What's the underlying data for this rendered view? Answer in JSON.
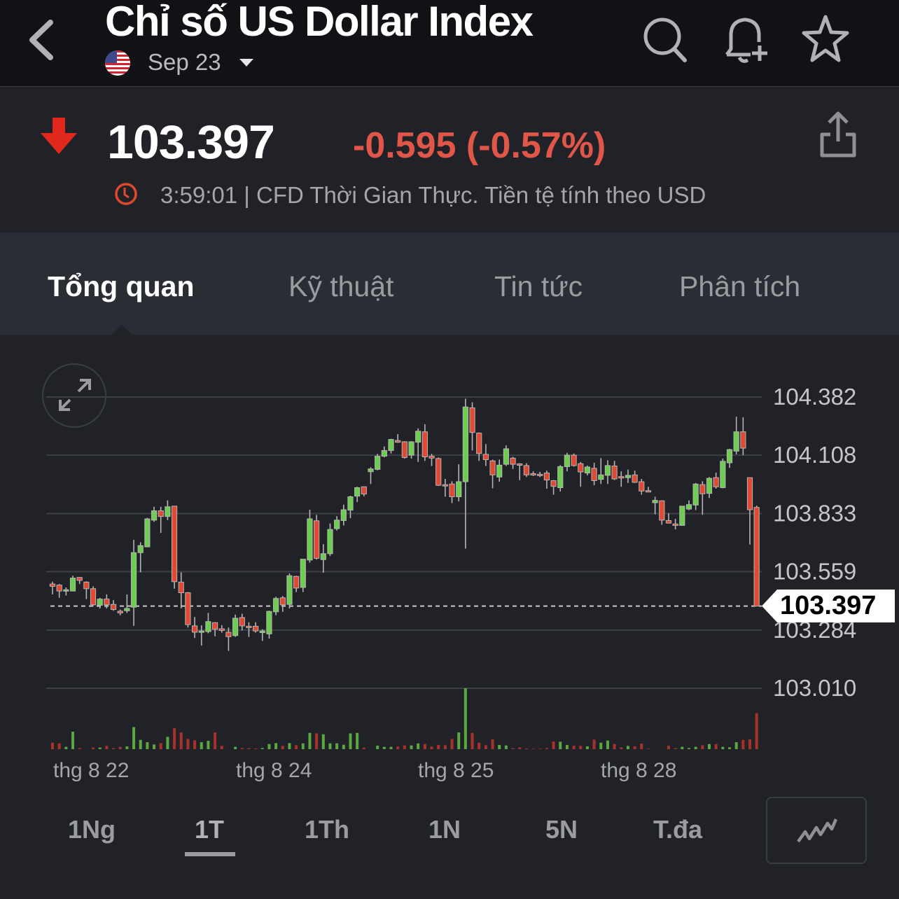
{
  "header": {
    "title": "Chỉ số US Dollar Index",
    "contract": "Sep 23",
    "icons": [
      "back-chevron-icon",
      "us-flag-icon",
      "search-icon",
      "bell-plus-icon",
      "star-icon"
    ]
  },
  "quote": {
    "price": "103.397",
    "change": "-0.595 (-0.57%)",
    "direction": "down",
    "meta": "3:59:01 | CFD Thời Gian Thực. Tiền tệ tính theo USD",
    "colors": {
      "down": "#e0574a",
      "arrow": "#e0281c"
    }
  },
  "tabs": [
    {
      "label": "Tổng quan",
      "active": true
    },
    {
      "label": "Kỹ thuật",
      "active": false
    },
    {
      "label": "Tin tức",
      "active": false
    },
    {
      "label": "Phân tích",
      "active": false
    }
  ],
  "periods": [
    {
      "label": "1Ng",
      "active": false
    },
    {
      "label": "1T",
      "active": true
    },
    {
      "label": "1Th",
      "active": false
    },
    {
      "label": "1N",
      "active": false
    },
    {
      "label": "5N",
      "active": false
    },
    {
      "label": "T.đa",
      "active": false
    }
  ],
  "chart_data": {
    "type": "candlestick",
    "y_ticks": [
      "104.382",
      "104.108",
      "103.833",
      "103.559",
      "103.284",
      "103.010"
    ],
    "ylim": [
      103.01,
      104.382
    ],
    "x_ticks": [
      "thg 8 22",
      "thg 8 24",
      "thg 8 25",
      "thg 8 28"
    ],
    "last_price": "103.397",
    "grid": true,
    "colors": {
      "up": "#6ccd4e",
      "down": "#e04a34",
      "volume_up": "#5aa83f",
      "volume_down": "#a8322a"
    },
    "ohlc": [
      [
        103.501,
        103.512,
        103.452,
        103.49
      ],
      [
        103.496,
        103.501,
        103.436,
        103.468
      ],
      [
        103.468,
        103.485,
        103.447,
        103.474
      ],
      [
        103.468,
        103.54,
        103.468,
        103.529
      ],
      [
        103.532,
        103.534,
        103.501,
        103.518
      ],
      [
        103.51,
        103.514,
        103.43,
        103.479
      ],
      [
        103.479,
        103.49,
        103.397,
        103.403
      ],
      [
        103.401,
        103.436,
        103.386,
        103.43
      ],
      [
        103.43,
        103.452,
        103.386,
        103.403
      ],
      [
        103.405,
        103.425,
        103.375,
        103.381
      ],
      [
        103.373,
        103.381,
        103.354,
        103.365
      ],
      [
        103.375,
        103.452,
        103.365,
        103.386
      ],
      [
        103.392,
        103.709,
        103.304,
        103.649
      ],
      [
        103.649,
        103.698,
        103.556,
        103.682
      ],
      [
        103.676,
        103.813,
        103.676,
        103.808
      ],
      [
        103.802,
        103.865,
        103.794,
        103.846
      ],
      [
        103.846,
        103.865,
        103.742,
        103.819
      ],
      [
        103.819,
        103.895,
        103.802,
        103.865
      ],
      [
        103.868,
        103.868,
        103.479,
        103.512
      ],
      [
        103.51,
        103.556,
        103.386,
        103.46
      ],
      [
        103.46,
        103.463,
        103.296,
        103.31
      ],
      [
        103.304,
        103.346,
        103.247,
        103.274
      ],
      [
        103.274,
        103.307,
        103.211,
        103.28
      ],
      [
        103.277,
        103.365,
        103.269,
        103.324
      ],
      [
        103.319,
        103.321,
        103.255,
        103.288
      ],
      [
        103.29,
        103.307,
        103.272,
        103.282
      ],
      [
        103.274,
        103.296,
        103.186,
        103.253
      ],
      [
        103.258,
        103.357,
        103.252,
        103.34
      ],
      [
        103.343,
        103.361,
        103.282,
        103.304
      ],
      [
        103.302,
        103.321,
        103.252,
        103.296
      ],
      [
        103.302,
        103.321,
        103.272,
        103.28
      ],
      [
        103.272,
        103.288,
        103.233,
        103.28
      ],
      [
        103.266,
        103.375,
        103.244,
        103.372
      ],
      [
        103.37,
        103.441,
        103.354,
        103.433
      ],
      [
        103.436,
        103.444,
        103.37,
        103.403
      ],
      [
        103.405,
        103.551,
        103.386,
        103.54
      ],
      [
        103.537,
        103.54,
        103.463,
        103.482
      ],
      [
        103.485,
        103.618,
        103.463,
        103.618
      ],
      [
        103.614,
        103.851,
        103.602,
        103.808
      ],
      [
        103.799,
        103.827,
        103.616,
        103.622
      ],
      [
        103.616,
        103.689,
        103.554,
        103.644
      ],
      [
        103.644,
        103.786,
        103.633,
        103.758
      ],
      [
        103.762,
        103.821,
        103.753,
        103.802
      ],
      [
        103.8,
        103.875,
        103.777,
        103.851
      ],
      [
        103.849,
        103.917,
        103.811,
        103.912
      ],
      [
        103.915,
        103.959,
        103.887,
        103.955
      ],
      [
        103.959,
        103.961,
        103.914,
        103.925
      ],
      [
        104.03,
        104.051,
        103.972,
        104.043
      ],
      [
        104.041,
        104.114,
        104.037,
        104.103
      ],
      [
        104.103,
        104.149,
        104.098,
        104.13
      ],
      [
        104.13,
        104.185,
        104.116,
        104.182
      ],
      [
        104.177,
        104.207,
        104.166,
        104.169
      ],
      [
        104.171,
        104.174,
        104.092,
        104.097
      ],
      [
        104.108,
        104.174,
        104.092,
        104.171
      ],
      [
        104.169,
        104.234,
        104.076,
        104.221
      ],
      [
        104.218,
        104.254,
        104.081,
        104.1
      ],
      [
        104.103,
        104.114,
        104.057,
        104.094
      ],
      [
        104.092,
        104.097,
        103.963,
        103.966
      ],
      [
        103.969,
        103.996,
        103.912,
        103.964
      ],
      [
        103.972,
        103.985,
        103.882,
        103.912
      ],
      [
        103.912,
        104.065,
        103.89,
        103.983
      ],
      [
        103.983,
        104.374,
        103.668,
        104.335
      ],
      [
        104.331,
        104.357,
        104.13,
        104.215
      ],
      [
        104.212,
        104.215,
        104.081,
        104.116
      ],
      [
        104.112,
        104.16,
        104.057,
        104.087
      ],
      [
        104.081,
        104.087,
        103.952,
        104.015
      ],
      [
        104.005,
        104.087,
        103.983,
        104.061
      ],
      [
        104.065,
        104.154,
        104.057,
        104.138
      ],
      [
        104.094,
        104.1,
        104.043,
        104.065
      ],
      [
        104.067,
        104.07,
        103.99,
        104.061
      ],
      [
        104.059,
        104.07,
        104.005,
        104.015
      ],
      [
        104.021,
        104.032,
        104.01,
        104.015
      ],
      [
        104.018,
        104.029,
        104.005,
        104.013
      ],
      [
        104.024,
        104.035,
        103.95,
        103.991
      ],
      [
        103.988,
        103.991,
        103.922,
        103.961
      ],
      [
        103.955,
        104.061,
        103.937,
        104.054
      ],
      [
        104.054,
        104.119,
        104.032,
        104.108
      ],
      [
        104.108,
        104.116,
        104.054,
        104.059
      ],
      [
        104.068,
        104.076,
        103.959,
        104.029
      ],
      [
        104.024,
        104.059,
        104.013,
        104.052
      ],
      [
        104.046,
        104.072,
        103.966,
        103.988
      ],
      [
        103.994,
        104.094,
        103.972,
        104.015
      ],
      [
        104.013,
        104.084,
        103.972,
        104.059
      ],
      [
        104.057,
        104.081,
        103.991,
        103.996
      ],
      [
        104.007,
        104.032,
        103.959,
        104.001
      ],
      [
        104.002,
        104.04,
        103.977,
        104.013
      ],
      [
        104.015,
        104.035,
        103.977,
        103.98
      ],
      [
        103.983,
        103.996,
        103.922,
        103.939
      ],
      [
        103.941,
        103.959,
        103.933,
        103.936
      ],
      [
        103.884,
        103.912,
        103.829,
        103.895
      ],
      [
        103.893,
        103.895,
        103.78,
        103.802
      ],
      [
        103.8,
        103.835,
        103.786,
        103.788
      ],
      [
        103.784,
        103.808,
        103.758,
        103.777
      ],
      [
        103.777,
        103.868,
        103.777,
        103.868
      ],
      [
        103.854,
        103.895,
        103.849,
        103.875
      ],
      [
        103.873,
        103.977,
        103.849,
        103.972
      ],
      [
        103.969,
        103.985,
        103.827,
        103.926
      ],
      [
        103.928,
        104.005,
        103.906,
        103.999
      ],
      [
        104.002,
        104.026,
        103.95,
        103.959
      ],
      [
        103.955,
        104.092,
        103.952,
        104.079
      ],
      [
        104.072,
        104.138,
        104.048,
        104.134
      ],
      [
        104.127,
        104.289,
        104.112,
        104.218
      ],
      [
        104.218,
        104.287,
        104.108,
        104.141
      ],
      [
        104.002,
        104.002,
        103.687,
        103.851
      ],
      [
        103.862,
        103.87,
        103.397,
        103.397
      ]
    ],
    "volume": [
      28,
      25,
      10,
      75,
      5,
      0,
      7,
      7,
      14,
      4,
      10,
      12,
      95,
      40,
      30,
      20,
      26,
      53,
      90,
      72,
      44,
      38,
      30,
      36,
      72,
      14,
      0,
      10,
      5,
      4,
      3,
      5,
      22,
      26,
      14,
      26,
      17,
      25,
      70,
      68,
      64,
      25,
      25,
      19,
      68,
      70,
      7,
      0,
      15,
      10,
      10,
      11,
      16,
      16,
      25,
      22,
      11,
      18,
      17,
      44,
      72,
      262,
      70,
      28,
      17,
      42,
      18,
      16,
      4,
      8,
      3,
      2,
      2,
      5,
      33,
      32,
      18,
      15,
      14,
      12,
      41,
      28,
      37,
      22,
      8,
      14,
      12,
      24,
      2,
      0,
      0,
      15,
      4,
      10,
      5,
      10,
      17,
      22,
      22,
      10,
      8,
      30,
      40,
      42,
      155
    ]
  }
}
